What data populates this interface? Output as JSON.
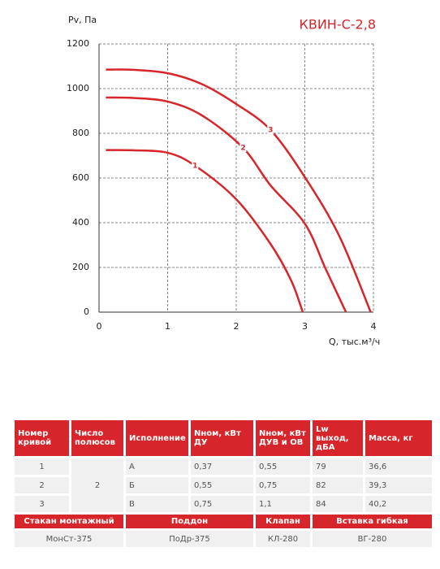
{
  "chart_data": {
    "type": "line",
    "title": "КВИН-С-2,8",
    "y_label": "Pv, Па",
    "x_label": "Q, тыс.м³/ч",
    "xlim": [
      0,
      4
    ],
    "xticks": [
      0,
      1,
      2,
      3,
      4
    ],
    "ylim": [
      0,
      1200
    ],
    "yticks": [
      0,
      200,
      400,
      600,
      800,
      1000,
      1200
    ],
    "grid": true,
    "series": [
      {
        "name": "1",
        "color": "#d7262b",
        "x": [
          0.1,
          0.5,
          1.0,
          1.4,
          2.0,
          2.5,
          2.8,
          2.97
        ],
        "values": [
          725,
          724,
          713,
          655,
          505,
          305,
          142,
          0
        ]
      },
      {
        "name": "2",
        "color": "#d7262b",
        "x": [
          0.1,
          0.5,
          1.0,
          1.5,
          2.1,
          2.5,
          3.0,
          3.3,
          3.6
        ],
        "values": [
          960,
          958,
          942,
          880,
          735,
          567,
          396,
          196,
          0
        ]
      },
      {
        "name": "3",
        "color": "#d7262b",
        "x": [
          0.1,
          0.5,
          1.0,
          1.5,
          2.0,
          2.5,
          3.0,
          3.5,
          3.96
        ],
        "values": [
          1085,
          1084,
          1069,
          1020,
          931,
          815,
          604,
          342,
          0
        ]
      }
    ]
  },
  "table": {
    "header": [
      "Номер кривой",
      "Число полюсов",
      "Исполнение",
      "Nном, кВт ДУ",
      "Nном, кВт ДУВ и ОВ",
      "Lw выход, дБА",
      "Масса, кг"
    ],
    "poles": "2",
    "rows": [
      [
        "1",
        "А",
        "0,37",
        "0,55",
        "79",
        "36,6"
      ],
      [
        "2",
        "Б",
        "0,55",
        "0,75",
        "82",
        "39,3"
      ],
      [
        "3",
        "В",
        "0,75",
        "1,1",
        "84",
        "40,2"
      ]
    ],
    "accessories_header": [
      "Стакан монтажный",
      "Поддон",
      "Клапан",
      "Вставка гибкая"
    ],
    "accessories": [
      "МонСт-375",
      "ПоДр-375",
      "КЛ-280",
      "ВГ-280"
    ]
  }
}
